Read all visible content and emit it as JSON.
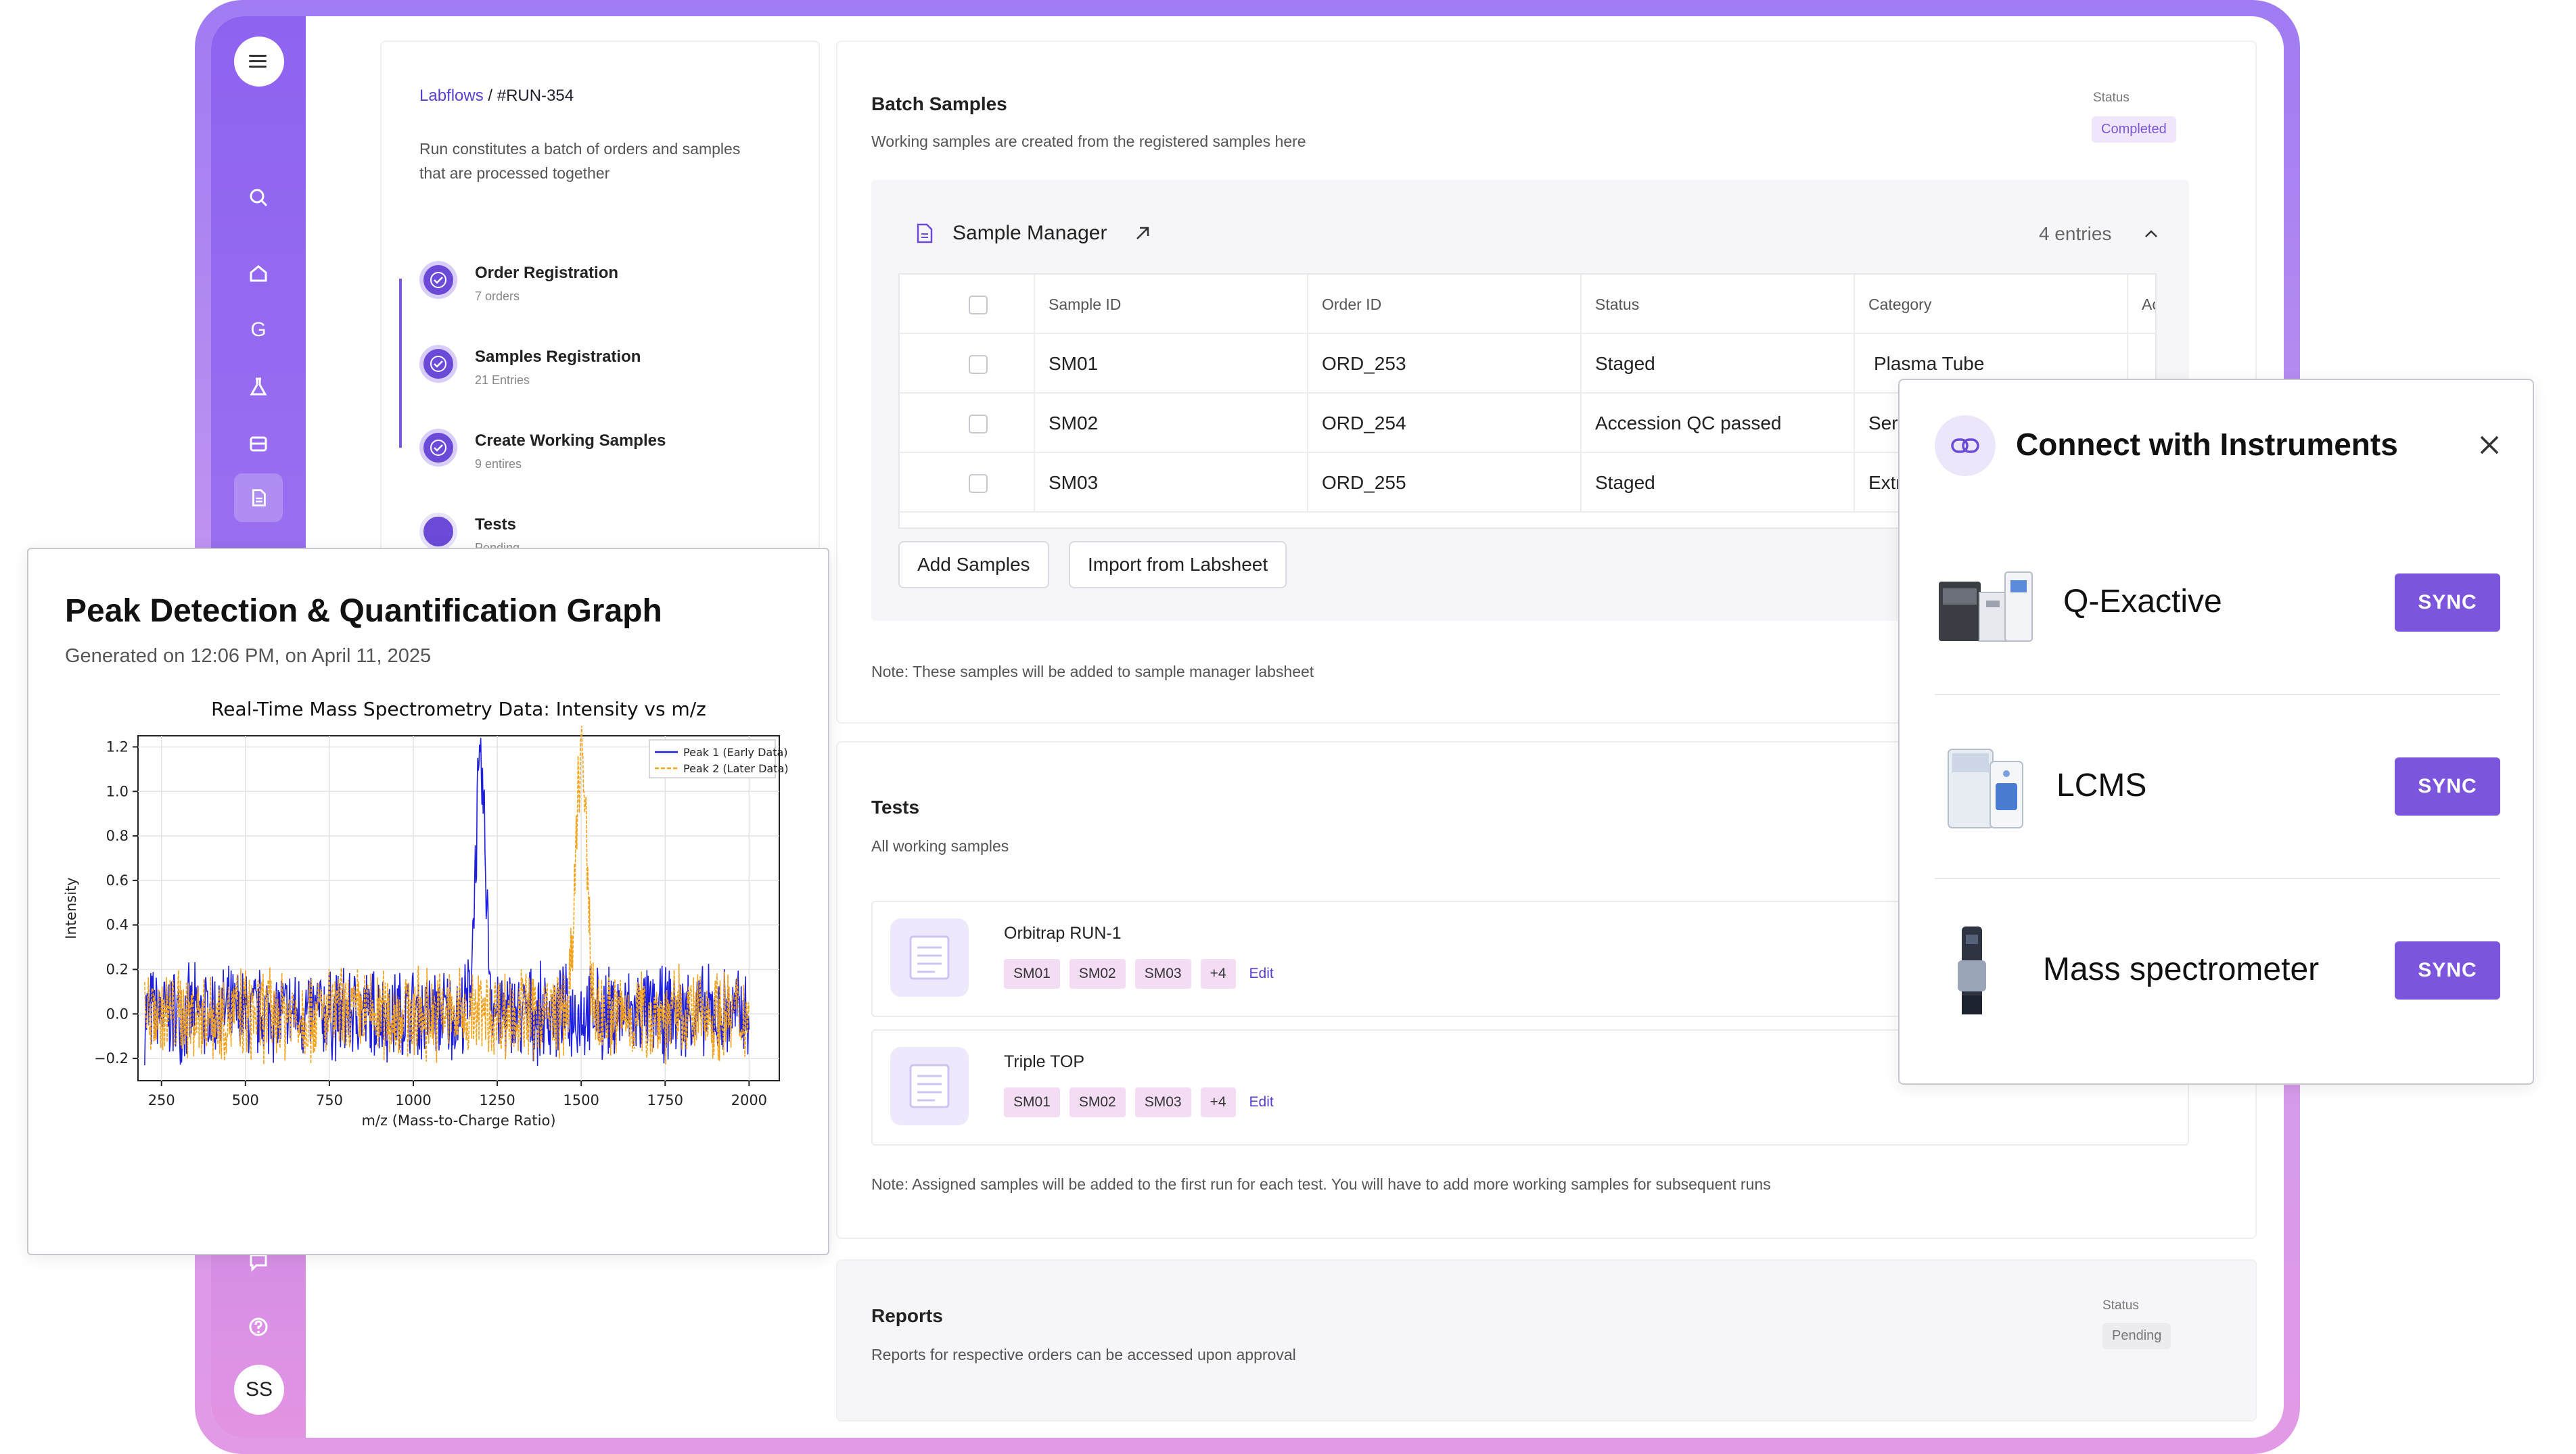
{
  "sidebar": {
    "avatar_initials": "SS",
    "items": [
      "menu-icon",
      "search-icon",
      "home-icon",
      "g-icon",
      "flask-icon",
      "inbox-icon",
      "document-icon",
      "target-icon",
      "chat-icon",
      "help-icon"
    ],
    "g_letter": "G"
  },
  "run": {
    "breadcrumb_root": "Labflows",
    "breadcrumb_sep": "/",
    "run_id": "#RUN-354",
    "description": "Run constitutes a batch of orders and samples that are processed together",
    "steps": [
      {
        "title": "Order Registration",
        "sub": "7 orders",
        "done": true
      },
      {
        "title": "Samples Registration",
        "sub": "21 Entries",
        "done": true
      },
      {
        "title": "Create Working Samples",
        "sub": "9 entires",
        "done": true
      },
      {
        "title": "Tests",
        "sub": "Pending",
        "done": false
      }
    ]
  },
  "batch": {
    "title": "Batch Samples",
    "subtitle": "Working samples are created from the registered samples here",
    "status_label": "Status",
    "status_value": "Completed",
    "status_color": "#7b56dc",
    "sample_manager": {
      "title": "Sample Manager",
      "entries": "4 entries",
      "columns": [
        "Sample ID",
        "Order ID",
        "Status",
        "Category",
        "Acce"
      ],
      "rows": [
        {
          "id": "SM01",
          "order": "ORD_253",
          "status": "Staged",
          "category": "Plasma Tube"
        },
        {
          "id": "SM02",
          "order": "ORD_254",
          "status": "Accession QC passed",
          "category": "Serum"
        },
        {
          "id": "SM03",
          "order": "ORD_255",
          "status": "Staged",
          "category": "Extra"
        }
      ],
      "add_label": "Add Samples",
      "import_label": "Import from Labsheet"
    },
    "note": "Note: These samples will be added to sample manager labsheet"
  },
  "tests": {
    "title": "Tests",
    "subtitle": "All working samples",
    "items": [
      {
        "name": "Orbitrap RUN-1",
        "chips": [
          "SM01",
          "SM02",
          "SM03",
          "+4"
        ],
        "edit": "Edit"
      },
      {
        "name": "Triple TOP",
        "chips": [
          "SM01",
          "SM02",
          "SM03",
          "+4"
        ],
        "edit": "Edit"
      }
    ],
    "note": "Note: Assigned samples will be added to the first run for each test. You will have to add more working samples for subsequent runs"
  },
  "reports": {
    "title": "Reports",
    "subtitle": "Reports for respective orders can be accessed upon approval",
    "status_label": "Status",
    "status_value": "Pending"
  },
  "peak": {
    "title": "Peak Detection & Quantification Graph",
    "generated": "Generated on 12:06 PM, on April 11, 2025"
  },
  "chart_data": {
    "type": "line",
    "title": "Real-Time Mass Spectrometry Data: Intensity vs m/z",
    "xlabel": "m/z (Mass-to-Charge Ratio)",
    "ylabel": "Intensity",
    "xlim": [
      180,
      2090
    ],
    "ylim": [
      -0.3,
      1.25
    ],
    "x_ticks": [
      "250",
      "500",
      "750",
      "1000",
      "1250",
      "1500",
      "1750",
      "2000"
    ],
    "x_tick_values": [
      250,
      500,
      750,
      1000,
      1250,
      1500,
      1750,
      2000
    ],
    "y_ticks": [
      "1.2",
      "1.0",
      "0.8",
      "0.6",
      "0.4",
      "0.2",
      "0.0",
      "−0.2"
    ],
    "y_tick_values": [
      1.2,
      1.0,
      0.8,
      0.6,
      0.4,
      0.2,
      0.0,
      -0.2
    ],
    "grid": true,
    "legend_position": "top-right",
    "x_range": [
      200,
      2000
    ],
    "noise_amplitude": 0.2,
    "series": [
      {
        "name": "Peak 1 (Early Data)",
        "color": "#1f1fe0",
        "style": "solid",
        "peak_center": 1200,
        "peak_height": 1.08
      },
      {
        "name": "Peak 2 (Later Data)",
        "color": "#f5a21b",
        "style": "dashed",
        "peak_center": 1500,
        "peak_height": 1.18
      }
    ]
  },
  "connect": {
    "title": "Connect with Instruments",
    "instruments": [
      {
        "name": "Q-Exactive",
        "sync": "SYNC"
      },
      {
        "name": "LCMS",
        "sync": "SYNC"
      },
      {
        "name": "Mass spectrometer",
        "sync": "SYNC"
      }
    ],
    "accent": "#7b56dc"
  }
}
